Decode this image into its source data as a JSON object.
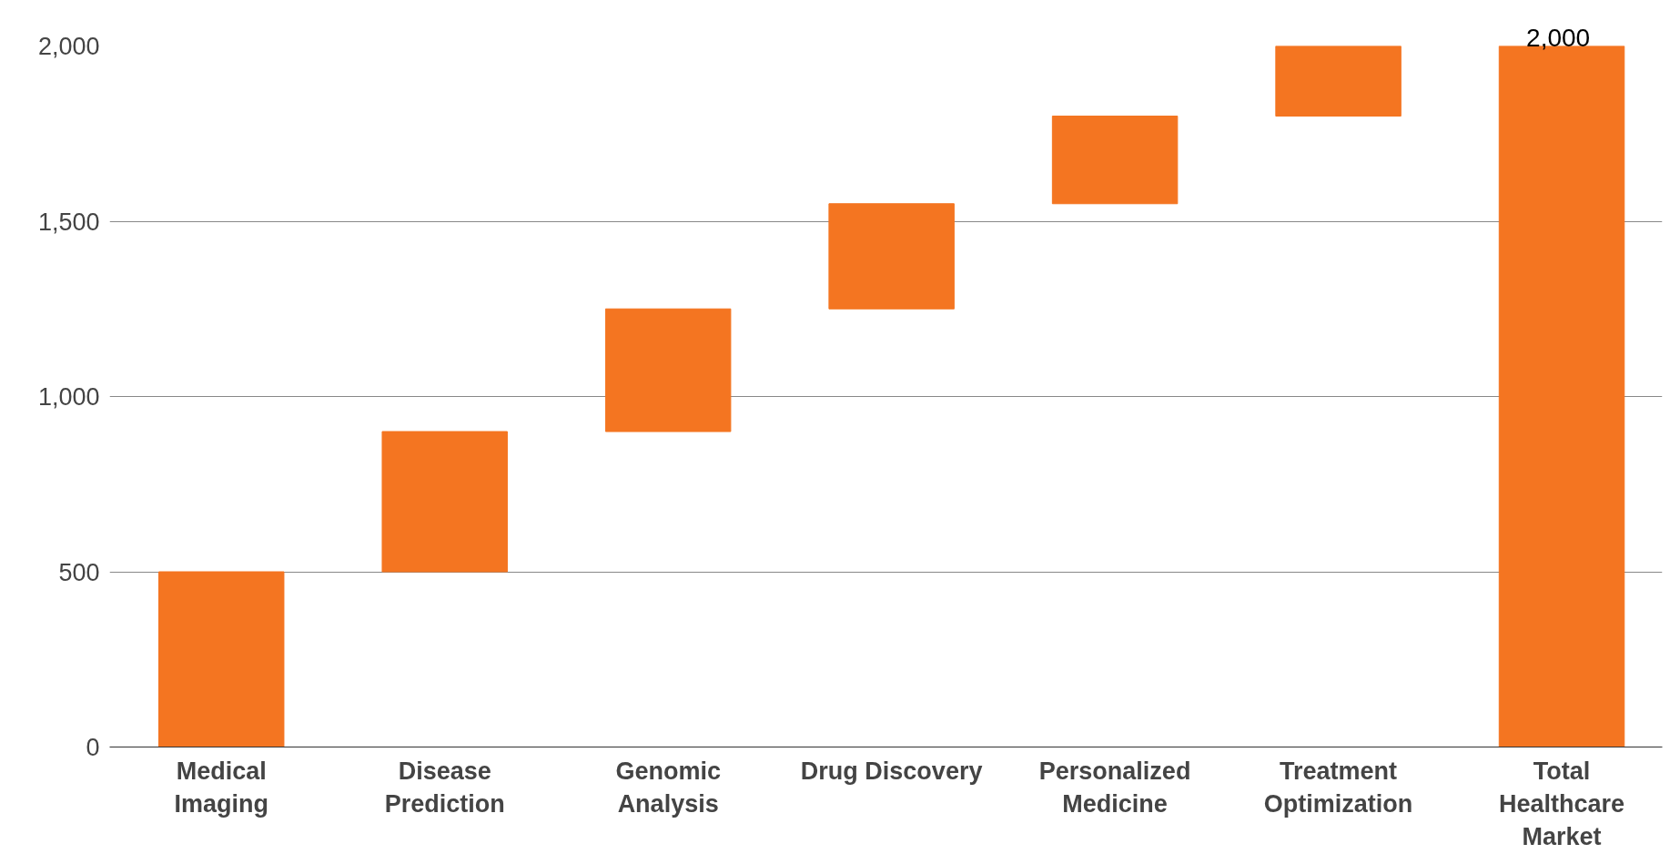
{
  "chart_data": {
    "type": "bar",
    "categories": [
      "Medical Imaging",
      "Disease Prediction",
      "Genomic Analysis",
      "Drug Discovery",
      "Personalized Medicine",
      "Treatment Optimization",
      "Total Healthcare Market"
    ],
    "values": [
      500,
      400,
      350,
      300,
      250,
      200,
      2000
    ],
    "base": [
      0,
      500,
      900,
      1250,
      1550,
      1800,
      0
    ],
    "color": "#f47521",
    "value_labels": [
      null,
      null,
      null,
      null,
      null,
      null,
      "2,000"
    ],
    "ylim": [
      0,
      2000
    ],
    "yticks": [
      0,
      {
        "value": 500,
        "label": "500"
      },
      {
        "value": 1000,
        "label": "1,000"
      },
      {
        "value": 1500,
        "label": "1,500"
      },
      {
        "value": 2000,
        "label": "2,000"
      }
    ],
    "grid": "y"
  }
}
